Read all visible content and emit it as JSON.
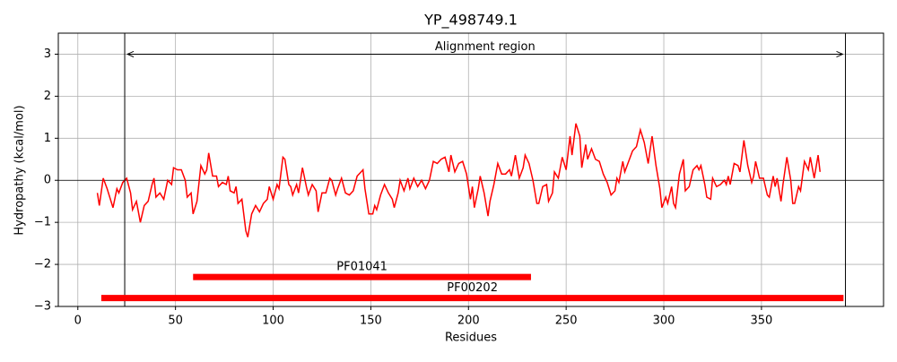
{
  "chart_data": {
    "type": "line",
    "title": "YP_498749.1",
    "xlabel": "Residues",
    "ylabel": "Hydropathy (kcal/mol)",
    "color": "#ff0000",
    "grid": true,
    "xlim": [
      -10,
      412.5
    ],
    "ylim": [
      -3,
      3.5
    ],
    "xticks": [
      0,
      50,
      100,
      150,
      200,
      250,
      300,
      350
    ],
    "yticks": [
      {
        "value": -3,
        "label": "−3"
      },
      {
        "value": -2,
        "label": "−2"
      },
      {
        "value": -1,
        "label": "−1"
      },
      0,
      1,
      2,
      3
    ],
    "reference_line": 0,
    "region": {
      "label": "Alignment region",
      "start": 24,
      "end": 393,
      "y": 3
    },
    "domains": [
      {
        "label": "PF01041",
        "start": 59,
        "end": 232,
        "y": -2.3
      },
      {
        "label": "PF00202",
        "start": 12,
        "end": 392,
        "y": -2.8
      }
    ],
    "x": [
      10,
      11,
      13,
      15,
      18,
      20,
      21,
      23,
      25,
      27,
      28,
      30,
      32,
      34,
      36,
      38,
      39,
      40,
      42,
      44,
      46,
      48,
      49,
      51,
      53,
      55,
      56,
      58,
      59,
      61,
      63,
      65,
      66,
      67,
      69,
      71,
      72,
      74,
      76,
      77,
      78,
      80,
      81,
      82,
      84,
      86,
      87,
      89,
      91,
      93,
      95,
      97,
      98,
      100,
      102,
      103,
      105,
      106,
      108,
      109,
      110,
      112,
      113,
      115,
      117,
      118,
      120,
      122,
      123,
      125,
      127,
      129,
      130,
      132,
      133,
      135,
      137,
      139,
      141,
      143,
      145,
      146,
      147,
      149,
      151,
      152,
      153,
      155,
      157,
      159,
      161,
      162,
      164,
      165,
      167,
      169,
      170,
      172,
      174,
      176,
      178,
      180,
      182,
      184,
      186,
      188,
      190,
      191,
      193,
      195,
      197,
      199,
      201,
      202,
      203,
      205,
      206,
      208,
      210,
      211,
      213,
      215,
      217,
      219,
      221,
      222,
      224,
      226,
      228,
      229,
      231,
      233,
      235,
      236,
      238,
      240,
      241,
      243,
      244,
      246,
      248,
      250,
      252,
      253,
      255,
      257,
      258,
      260,
      261,
      263,
      265,
      267,
      269,
      271,
      273,
      275,
      276,
      277,
      279,
      280,
      282,
      284,
      286,
      288,
      290,
      292,
      294,
      296,
      298,
      299,
      301,
      302,
      304,
      305,
      306,
      308,
      310,
      311,
      313,
      315,
      317,
      318,
      319,
      321,
      322,
      324,
      325,
      327,
      329,
      331,
      332,
      333,
      334,
      336,
      338,
      339,
      341,
      343,
      345,
      346,
      347,
      349,
      351,
      353,
      354,
      356,
      357,
      358,
      360,
      361,
      363,
      365,
      366,
      367,
      369,
      370,
      372,
      374,
      375,
      377,
      379,
      380
    ],
    "values": [
      -0.3,
      -0.6,
      0.05,
      -0.2,
      -0.65,
      -0.2,
      -0.3,
      -0.05,
      0.05,
      -0.3,
      -0.7,
      -0.5,
      -1.0,
      -0.6,
      -0.5,
      -0.1,
      0.05,
      -0.4,
      -0.3,
      -0.45,
      0.0,
      -0.1,
      0.3,
      0.25,
      0.25,
      0.0,
      -0.4,
      -0.3,
      -0.8,
      -0.5,
      0.35,
      0.15,
      0.25,
      0.65,
      0.1,
      0.1,
      -0.15,
      -0.05,
      -0.1,
      0.1,
      -0.25,
      -0.3,
      -0.15,
      -0.55,
      -0.45,
      -1.2,
      -1.35,
      -0.8,
      -0.6,
      -0.75,
      -0.55,
      -0.45,
      -0.15,
      -0.45,
      -0.1,
      -0.2,
      0.55,
      0.5,
      -0.1,
      -0.15,
      -0.35,
      -0.1,
      -0.3,
      0.3,
      -0.15,
      -0.35,
      -0.1,
      -0.25,
      -0.75,
      -0.3,
      -0.3,
      0.05,
      0.0,
      -0.35,
      -0.2,
      0.05,
      -0.3,
      -0.35,
      -0.25,
      0.1,
      0.2,
      0.25,
      -0.2,
      -0.8,
      -0.8,
      -0.6,
      -0.7,
      -0.35,
      -0.1,
      -0.3,
      -0.45,
      -0.65,
      -0.3,
      0.0,
      -0.25,
      0.05,
      -0.2,
      0.05,
      -0.15,
      0.0,
      -0.2,
      0.0,
      0.45,
      0.4,
      0.5,
      0.55,
      0.2,
      0.6,
      0.2,
      0.4,
      0.45,
      0.15,
      -0.45,
      -0.15,
      -0.65,
      -0.2,
      0.1,
      -0.3,
      -0.85,
      -0.5,
      -0.1,
      0.4,
      0.15,
      0.15,
      0.25,
      0.1,
      0.6,
      0.05,
      0.3,
      0.6,
      0.4,
      0.0,
      -0.55,
      -0.55,
      -0.15,
      -0.1,
      -0.5,
      -0.3,
      0.2,
      0.05,
      0.55,
      0.25,
      1.05,
      0.6,
      1.35,
      1.05,
      0.3,
      0.85,
      0.5,
      0.75,
      0.5,
      0.45,
      0.15,
      -0.05,
      -0.35,
      -0.25,
      0.05,
      -0.05,
      0.45,
      0.2,
      0.45,
      0.7,
      0.8,
      1.2,
      0.9,
      0.4,
      1.05,
      0.35,
      -0.2,
      -0.65,
      -0.4,
      -0.55,
      -0.15,
      -0.55,
      -0.65,
      0.15,
      0.5,
      -0.25,
      -0.15,
      0.25,
      0.35,
      0.25,
      0.35,
      -0.1,
      -0.4,
      -0.45,
      0.05,
      -0.15,
      -0.1,
      0.0,
      -0.1,
      0.1,
      -0.1,
      0.4,
      0.35,
      0.2,
      0.95,
      0.35,
      -0.05,
      0.1,
      0.45,
      0.05,
      0.05,
      -0.35,
      -0.4,
      0.1,
      -0.15,
      0.05,
      -0.5,
      -0.1,
      0.55,
      0.0,
      -0.55,
      -0.55,
      -0.15,
      -0.25,
      0.45,
      0.25,
      0.55,
      0.05,
      0.6,
      0.2
    ]
  }
}
